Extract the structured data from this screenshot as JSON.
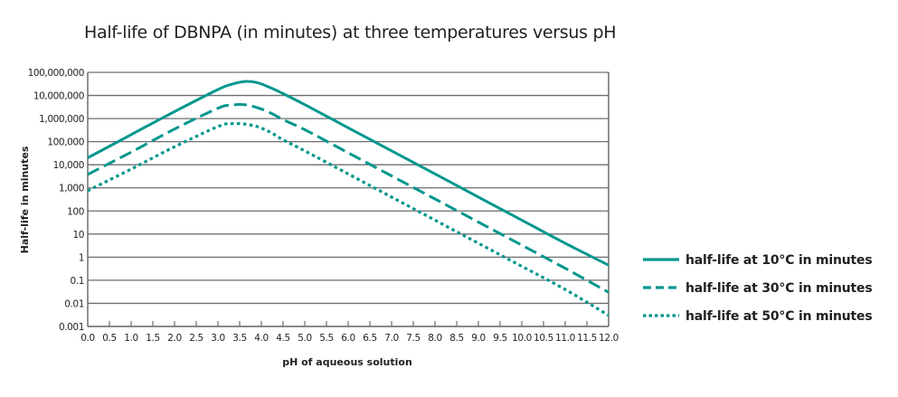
{
  "chart_data": {
    "type": "line",
    "title": "Half-life of DBNPA (in minutes) at three temperatures versus pH",
    "xlabel": "pH of aqueous solution",
    "ylabel": "Half-life in minutes",
    "xlim": [
      0.0,
      12.0
    ],
    "ylim": [
      0.001,
      100000000
    ],
    "yscale": "log",
    "grid": "horizontal",
    "legend_position": "right",
    "x_ticks": [
      "0.0",
      "0.5",
      "1.0",
      "1.5",
      "2.0",
      "2.5",
      "3.0",
      "3.5",
      "4.0",
      "4.5",
      "5.0",
      "5.5",
      "6.0",
      "6.5",
      "7.0",
      "7.5",
      "8.0",
      "8.5",
      "9.0",
      "9.5",
      "10.0",
      "10.5",
      "11.0",
      "11.5",
      "12.0"
    ],
    "y_ticks": [
      {
        "value": 100000000,
        "label": "100,000,000"
      },
      {
        "value": 10000000,
        "label": "10,000,000"
      },
      {
        "value": 1000000,
        "label": "1,000,000"
      },
      {
        "value": 100000,
        "label": "100,000"
      },
      {
        "value": 10000,
        "label": "10,000"
      },
      {
        "value": 1000,
        "label": "1,000"
      },
      {
        "value": 100,
        "label": "100"
      },
      {
        "value": 10,
        "label": "10"
      },
      {
        "value": 1,
        "label": "1"
      },
      {
        "value": 0.1,
        "label": "0.1"
      },
      {
        "value": 0.01,
        "label": "0.01"
      },
      {
        "value": 0.001,
        "label": "0.001"
      }
    ],
    "x": [
      0.0,
      1.0,
      2.0,
      3.0,
      3.3,
      3.6,
      3.9,
      4.2,
      4.5,
      5.0,
      6.0,
      7.0,
      8.0,
      9.0,
      10.0,
      11.0,
      12.0
    ],
    "series": [
      {
        "name": "half-life at 10°C in minutes",
        "style": "solid",
        "color": "#00968f",
        "values": [
          20000,
          200000,
          2000000,
          18000000,
          30000000,
          40000000,
          36000000,
          22000000,
          12000000,
          4000000,
          400000,
          40000,
          4000,
          400,
          40,
          4,
          0.45
        ]
      },
      {
        "name": "half-life at 30°C in minutes",
        "style": "dashed",
        "color": "#00968f",
        "values": [
          3800,
          35000,
          350000,
          2800000,
          3800000,
          4000000,
          3000000,
          1800000,
          900000,
          330000,
          33000,
          3300,
          330,
          33,
          3.3,
          0.33,
          0.03
        ]
      },
      {
        "name": "half-life at 50°C in minutes",
        "style": "dotted",
        "color": "#00968f",
        "values": [
          750,
          6500,
          60000,
          450000,
          600000,
          580000,
          450000,
          260000,
          120000,
          40000,
          4000,
          400,
          40,
          4,
          0.4,
          0.04,
          0.003
        ]
      }
    ]
  }
}
